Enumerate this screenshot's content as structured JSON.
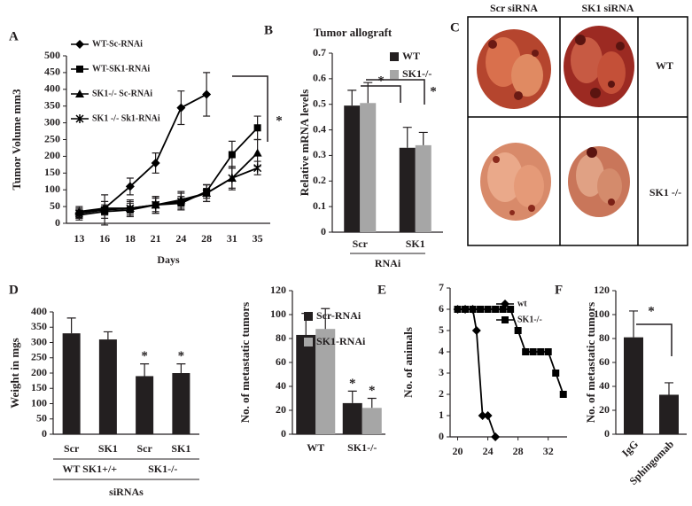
{
  "chart_data": [
    {
      "type": "line",
      "label": "A",
      "ylabel": "Tumor Volume mm3",
      "xlabel": "Days",
      "categories": [
        "13",
        "16",
        "18",
        "21",
        "24",
        "28",
        "31",
        "35"
      ],
      "ylim": [
        0,
        500
      ],
      "yticks": [
        0,
        50,
        100,
        150,
        200,
        250,
        300,
        350,
        400,
        450,
        500
      ],
      "series": [
        {
          "name": "WT-Sc-RNAi",
          "marker": "diamond",
          "color": "#000000",
          "values": [
            30,
            45,
            110,
            180,
            345,
            385,
            null,
            null
          ],
          "errors": [
            15,
            20,
            25,
            30,
            50,
            65,
            null,
            null
          ]
        },
        {
          "name": "WT-SK1-RNAi",
          "marker": "square",
          "color": "#000000",
          "values": [
            25,
            35,
            40,
            55,
            60,
            95,
            205,
            285
          ],
          "errors": [
            15,
            20,
            20,
            20,
            20,
            20,
            40,
            35
          ]
        },
        {
          "name": "SK1-/- Sc-RNAi",
          "marker": "triangle",
          "color": "#000000",
          "values": [
            35,
            45,
            45,
            55,
            70,
            90,
            135,
            210
          ],
          "errors": [
            15,
            20,
            20,
            25,
            25,
            25,
            35,
            40
          ]
        },
        {
          "name": "SK1 -/- Sk1-RNAi",
          "marker": "x",
          "color": "#000000",
          "values": [
            30,
            40,
            45,
            55,
            65,
            90,
            135,
            165
          ],
          "errors": [
            15,
            45,
            25,
            25,
            25,
            25,
            30,
            20
          ]
        }
      ],
      "annotations": [
        "*"
      ]
    },
    {
      "type": "bar",
      "label": "B",
      "title": "Tumor allograft",
      "ylabel": "Relative mRNA levels",
      "xlabel": "RNAi",
      "categories": [
        "Scr",
        "SK1"
      ],
      "ylim": [
        0,
        0.7
      ],
      "yticks": [
        0,
        0.1,
        0.2,
        0.3,
        0.4,
        0.5,
        0.6,
        0.7
      ],
      "series": [
        {
          "name": "WT",
          "color": "#231f20",
          "values": [
            0.495,
            0.33
          ],
          "errors": [
            0.06,
            0.08
          ]
        },
        {
          "name": "SK1-/-",
          "color": "#a6a6a6",
          "values": [
            0.505,
            0.34
          ],
          "errors": [
            0.08,
            0.05
          ]
        }
      ],
      "annotations": [
        "*",
        "*"
      ]
    },
    {
      "type": "bar",
      "label": "D",
      "ylabel": "Weight in mgs",
      "xlabel": "siRNAs",
      "categories": [
        "Scr",
        "SK1",
        "Scr",
        "SK1"
      ],
      "group_labels": [
        "WT SK1+/+",
        "SK1-/-"
      ],
      "ylim": [
        0,
        400
      ],
      "yticks": [
        0,
        50,
        100,
        150,
        200,
        250,
        300,
        350,
        400
      ],
      "values": [
        330,
        310,
        190,
        200
      ],
      "errors": [
        50,
        25,
        40,
        30
      ],
      "color": "#231f20",
      "significance": [
        null,
        null,
        "*",
        "*"
      ]
    },
    {
      "type": "bar",
      "ylabel": "No. of metastatic tumors",
      "categories": [
        "WT",
        "SK1-/-"
      ],
      "ylim": [
        0,
        120
      ],
      "yticks": [
        0,
        20,
        40,
        60,
        80,
        100,
        120
      ],
      "series": [
        {
          "name": "Scr-RNAi",
          "color": "#231f20",
          "values": [
            83,
            26
          ],
          "errors": [
            18,
            10
          ],
          "significance": [
            null,
            "*"
          ]
        },
        {
          "name": "SK1-RNAi",
          "color": "#a6a6a6",
          "values": [
            88,
            22
          ],
          "errors": [
            17,
            8
          ],
          "significance": [
            null,
            "*"
          ]
        }
      ]
    },
    {
      "type": "line",
      "label": "E",
      "ylabel": "No. of animals",
      "xlim": [
        19,
        34.5
      ],
      "xticks": [
        20,
        24,
        28,
        32
      ],
      "ylim": [
        0,
        7
      ],
      "yticks": [
        0,
        1,
        2,
        3,
        4,
        5,
        6,
        7
      ],
      "series": [
        {
          "name": "wt",
          "marker": "diamond",
          "color": "#000000",
          "x": [
            20,
            21,
            22,
            22.5,
            23.3,
            24,
            25
          ],
          "values": [
            6,
            6,
            6,
            5,
            1,
            1,
            0
          ]
        },
        {
          "name": "SK1-/-",
          "marker": "square",
          "color": "#000000",
          "x": [
            20,
            21,
            22,
            23,
            24,
            25,
            26,
            27,
            28,
            29,
            30,
            31,
            32,
            33,
            34
          ],
          "values": [
            6,
            6,
            6,
            6,
            6,
            6,
            6,
            6,
            5,
            4,
            4,
            4,
            4,
            3,
            2
          ]
        }
      ]
    },
    {
      "type": "bar",
      "label": "F",
      "ylabel": "No. of metastatic tumors",
      "categories": [
        "IgG",
        "Sphingomab"
      ],
      "ylim": [
        0,
        120
      ],
      "yticks": [
        0,
        20,
        40,
        60,
        80,
        100,
        120
      ],
      "values": [
        81,
        33
      ],
      "errors": [
        22,
        10
      ],
      "color": "#231f20",
      "annotations": [
        "*"
      ]
    }
  ],
  "image_panel": {
    "label": "C",
    "columns": [
      "Scr siRNA",
      "SK1 siRNA"
    ],
    "rows": [
      "WT",
      "SK1 -/-"
    ]
  }
}
